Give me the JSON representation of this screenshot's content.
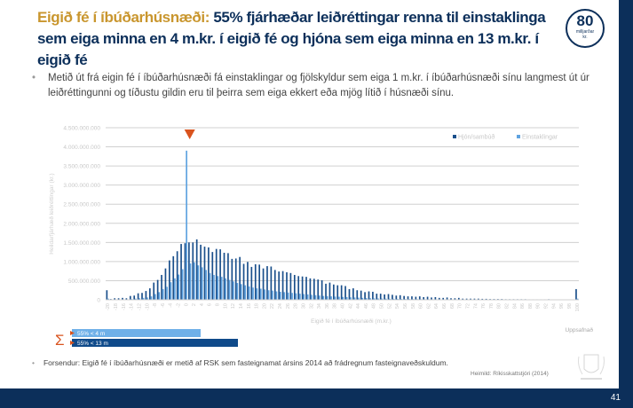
{
  "header": {
    "title_highlight": "Eigið fé í íbúðarhúsnæði:",
    "title_rest": " 55% fjárhæðar leiðréttingar renna til einstaklinga sem eiga minna en 4 m.kr. í eigið fé og hjóna sem eiga minna en 13 m.kr. í eigið fé",
    "badge_number": "80",
    "badge_unit_1": "milljarðar",
    "badge_unit_2": "kr."
  },
  "bullet": {
    "text": "Metið út frá eigin fé í íbúðarhúsnæði fá einstaklingar og fjölskyldur sem eiga 1 m.kr. í íbúðarhúsnæði sínu langmest út úr leiðréttingunni og tíðustu gildin eru til þeirra sem eiga ekkert eða mjög lítið í húsnæði sínu."
  },
  "summary": {
    "symbol": "Σ",
    "bars": [
      {
        "label": "55% < 4 m",
        "color": "#6fb0e8",
        "share": 0.55
      },
      {
        "label": "55% < 13 m",
        "color": "#0f4a8a",
        "share": 0.55
      }
    ]
  },
  "note": {
    "text": "Forsendur: Eigið fé í íbúðarhúsnæði er metið af RSK sem fasteignamat ársins 2014 að frádregnum fasteignaveðskuldum."
  },
  "source": {
    "text": "Heimild: Ríkisskattstjóri (2014)"
  },
  "footer": {
    "page_number": "41"
  },
  "chart_data": {
    "type": "bar",
    "title": "",
    "xlabel": "Eigið fé í íbúðarhúsnæði (m.kr.)",
    "ylabel": "Heildarfjárhæð leiðréttingar (kr.)",
    "ylim": [
      0,
      4500000000
    ],
    "yticks": [
      0,
      500000000,
      1000000000,
      1500000000,
      2000000000,
      2500000000,
      3000000000,
      3500000000,
      4000000000,
      4500000000
    ],
    "ytick_labels": [
      "0",
      "500.000.000",
      "1.000.000.000",
      "1.500.000.000",
      "2.000.000.000",
      "2.500.000.000",
      "3.000.000.000",
      "3.500.000.000",
      "4.000.000.000",
      "4.500.000.000"
    ],
    "grid": true,
    "legend": "top-right",
    "x_end_label": "Uppsafnað",
    "marker": "1",
    "categories": [
      -20,
      -19,
      -18,
      -17,
      -16,
      -15,
      -14,
      -13,
      -12,
      -11,
      -10,
      -9,
      -8,
      -7,
      -6,
      -5,
      -4,
      -3,
      -2,
      -1,
      0,
      1,
      2,
      3,
      4,
      5,
      6,
      7,
      8,
      9,
      10,
      11,
      12,
      13,
      14,
      15,
      16,
      17,
      18,
      19,
      20,
      21,
      22,
      23,
      24,
      25,
      26,
      27,
      28,
      29,
      30,
      31,
      32,
      33,
      34,
      35,
      36,
      37,
      38,
      39,
      40,
      41,
      42,
      43,
      44,
      45,
      46,
      47,
      48,
      49,
      50,
      51,
      52,
      53,
      54,
      55,
      56,
      57,
      58,
      59,
      60,
      61,
      62,
      63,
      64,
      65,
      66,
      67,
      68,
      69,
      70,
      71,
      72,
      73,
      74,
      75,
      76,
      77,
      78,
      79,
      80,
      81,
      82,
      83,
      84,
      85,
      86,
      87,
      88,
      89,
      90,
      91,
      92,
      93,
      94,
      95,
      96,
      97,
      98,
      99,
      100
    ],
    "series": [
      {
        "name": "Hjón/sambúð",
        "color": "#1a4f8b",
        "values": [
          250000000,
          20000000,
          40000000,
          40000000,
          50000000,
          40000000,
          100000000,
          110000000,
          170000000,
          180000000,
          230000000,
          300000000,
          450000000,
          520000000,
          650000000,
          820000000,
          1030000000,
          1140000000,
          1270000000,
          1460000000,
          1480000000,
          1500000000,
          1500000000,
          1580000000,
          1440000000,
          1390000000,
          1370000000,
          1250000000,
          1330000000,
          1320000000,
          1230000000,
          1220000000,
          1070000000,
          1080000000,
          1120000000,
          940000000,
          990000000,
          860000000,
          930000000,
          920000000,
          820000000,
          880000000,
          870000000,
          780000000,
          740000000,
          750000000,
          720000000,
          700000000,
          650000000,
          620000000,
          610000000,
          600000000,
          560000000,
          550000000,
          530000000,
          510000000,
          420000000,
          450000000,
          400000000,
          380000000,
          380000000,
          360000000,
          280000000,
          300000000,
          250000000,
          240000000,
          200000000,
          220000000,
          210000000,
          160000000,
          160000000,
          140000000,
          150000000,
          130000000,
          110000000,
          120000000,
          100000000,
          90000000,
          90000000,
          80000000,
          90000000,
          70000000,
          80000000,
          60000000,
          70000000,
          50000000,
          50000000,
          60000000,
          40000000,
          40000000,
          50000000,
          30000000,
          30000000,
          30000000,
          30000000,
          30000000,
          25000000,
          25000000,
          20000000,
          20000000,
          20000000,
          20000000,
          15000000,
          15000000,
          15000000,
          15000000,
          15000000,
          15000000,
          12000000,
          12000000,
          12000000,
          12000000,
          12000000,
          15000000,
          10000000,
          10000000,
          10000000,
          10000000,
          10000000,
          10000000,
          280000000
        ]
      },
      {
        "name": "Einstaklingar",
        "color": "#5fa3e0",
        "values": [
          30000000,
          10000000,
          10000000,
          10000000,
          10000000,
          10000000,
          20000000,
          30000000,
          40000000,
          50000000,
          60000000,
          90000000,
          150000000,
          200000000,
          280000000,
          340000000,
          460000000,
          560000000,
          660000000,
          800000000,
          3900000000,
          950000000,
          980000000,
          900000000,
          850000000,
          780000000,
          700000000,
          650000000,
          620000000,
          600000000,
          560000000,
          520000000,
          480000000,
          440000000,
          410000000,
          380000000,
          350000000,
          320000000,
          300000000,
          290000000,
          270000000,
          250000000,
          240000000,
          220000000,
          210000000,
          200000000,
          190000000,
          180000000,
          170000000,
          160000000,
          150000000,
          140000000,
          130000000,
          120000000,
          110000000,
          100000000,
          95000000,
          90000000,
          85000000,
          80000000,
          75000000,
          70000000,
          65000000,
          60000000,
          55000000,
          50000000,
          45000000,
          40000000,
          38000000,
          35000000,
          32000000,
          30000000,
          28000000,
          26000000,
          24000000,
          22000000,
          20000000,
          19000000,
          18000000,
          17000000,
          16000000,
          15000000,
          14000000,
          13000000,
          12000000,
          11000000,
          10000000,
          10000000,
          9000000,
          9000000,
          8000000,
          8000000,
          7000000,
          7000000,
          6000000,
          6000000,
          5000000,
          5000000,
          5000000,
          5000000,
          5000000,
          5000000,
          4000000,
          4000000,
          4000000,
          4000000,
          4000000,
          4000000,
          3000000,
          3000000,
          3000000,
          3000000,
          3000000,
          3000000,
          3000000,
          3000000,
          3000000,
          3000000,
          3000000,
          3000000,
          30000000
        ]
      }
    ]
  }
}
